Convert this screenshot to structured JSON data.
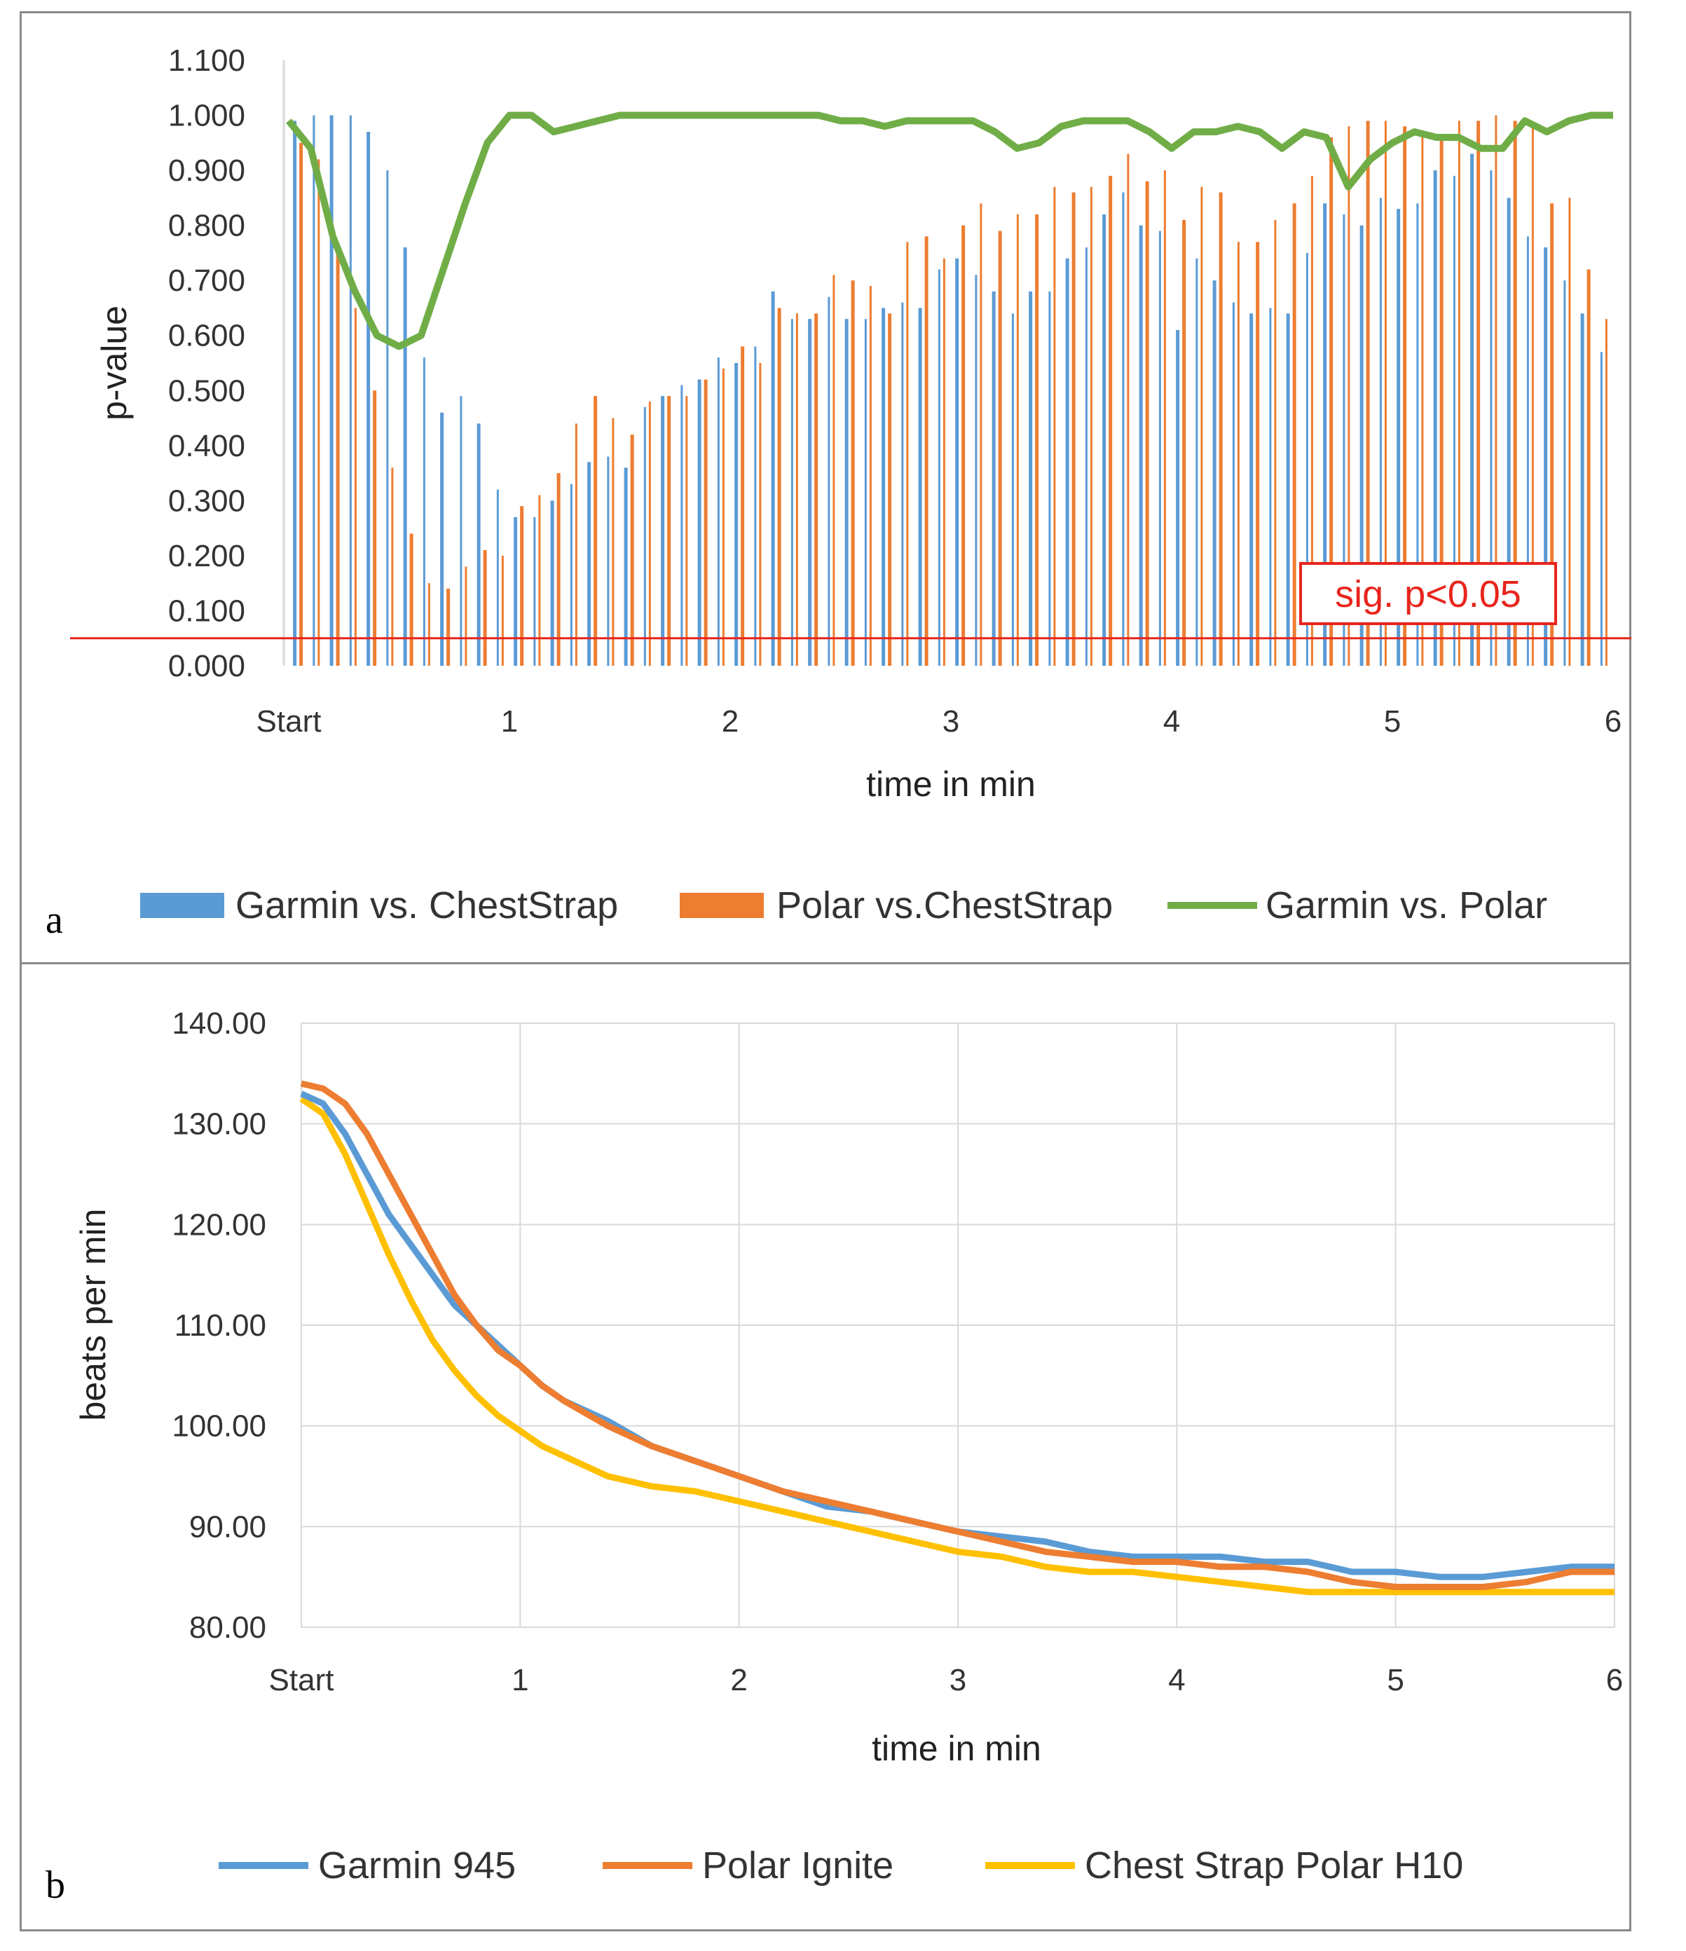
{
  "colors": {
    "garmin": "#5b9bd5",
    "polar": "#ed7d31",
    "green": "#70ad47",
    "chest": "#ffc000",
    "sig": "#e8241c",
    "grid": "#d9d9d9"
  },
  "panel_a": {
    "letter": "a",
    "sig_label": "sig. p<0.05"
  },
  "panel_b": {
    "letter": "b"
  },
  "chart_data": [
    {
      "type": "bar",
      "title": "",
      "xlabel": "time in min",
      "ylabel": "p-value",
      "ylim": [
        0,
        1.1
      ],
      "yticks": [
        "0.000",
        "0.100",
        "0.200",
        "0.300",
        "0.400",
        "0.500",
        "0.600",
        "0.700",
        "0.800",
        "0.900",
        "1.000",
        "1.100"
      ],
      "xlim": [
        0,
        6
      ],
      "xticks": [
        {
          "x": 0,
          "label": "Start"
        },
        {
          "x": 1,
          "label": "1"
        },
        {
          "x": 2,
          "label": "2"
        },
        {
          "x": 3,
          "label": "3"
        },
        {
          "x": 4,
          "label": "4"
        },
        {
          "x": 5,
          "label": "5"
        },
        {
          "x": 6,
          "label": "6"
        }
      ],
      "threshold": 0.05,
      "legend": [
        "Garmin vs. ChestStrap",
        "Polar vs.ChestStrap",
        "Garmin vs. Polar"
      ],
      "series": [
        {
          "name": "Garmin vs. ChestStrap",
          "kind": "bar",
          "values": [
            0.99,
            1.0,
            1.0,
            1.0,
            0.97,
            0.9,
            0.76,
            0.56,
            0.46,
            0.49,
            0.44,
            0.32,
            0.27,
            0.27,
            0.3,
            0.33,
            0.37,
            0.38,
            0.36,
            0.47,
            0.49,
            0.51,
            0.52,
            0.56,
            0.55,
            0.58,
            0.68,
            0.63,
            0.63,
            0.67,
            0.63,
            0.63,
            0.65,
            0.66,
            0.65,
            0.72,
            0.74,
            0.71,
            0.68,
            0.64,
            0.68,
            0.68,
            0.74,
            0.76,
            0.82,
            0.86,
            0.8,
            0.79,
            0.61,
            0.74,
            0.7,
            0.66,
            0.64,
            0.65,
            0.64,
            0.75,
            0.84,
            0.82,
            0.8,
            0.85,
            0.83,
            0.84,
            0.9,
            0.89,
            0.93,
            0.9,
            0.85,
            0.78,
            0.76,
            0.7,
            0.64,
            0.57
          ]
        },
        {
          "name": "Polar vs.ChestStrap",
          "kind": "bar",
          "values": [
            0.95,
            0.92,
            0.75,
            0.65,
            0.5,
            0.36,
            0.24,
            0.15,
            0.14,
            0.18,
            0.21,
            0.2,
            0.29,
            0.31,
            0.35,
            0.44,
            0.49,
            0.45,
            0.42,
            0.48,
            0.49,
            0.49,
            0.52,
            0.54,
            0.58,
            0.55,
            0.65,
            0.64,
            0.64,
            0.71,
            0.7,
            0.69,
            0.64,
            0.77,
            0.78,
            0.74,
            0.8,
            0.84,
            0.79,
            0.82,
            0.82,
            0.87,
            0.86,
            0.87,
            0.89,
            0.93,
            0.88,
            0.9,
            0.81,
            0.87,
            0.86,
            0.77,
            0.77,
            0.81,
            0.84,
            0.89,
            0.96,
            0.98,
            0.99,
            0.99,
            0.98,
            0.97,
            0.96,
            0.99,
            0.99,
            1.0,
            0.99,
            0.98,
            0.84,
            0.85,
            0.72,
            0.63
          ]
        },
        {
          "name": "Garmin vs. Polar",
          "kind": "line",
          "x": [
            0,
            0.1,
            0.2,
            0.3,
            0.4,
            0.5,
            0.6,
            0.7,
            0.8,
            0.9,
            1.0,
            1.1,
            1.2,
            1.3,
            1.4,
            1.5,
            1.6,
            1.7,
            1.8,
            1.9,
            2.0,
            2.1,
            2.2,
            2.3,
            2.4,
            2.5,
            2.6,
            2.7,
            2.8,
            2.9,
            3.0,
            3.1,
            3.2,
            3.3,
            3.4,
            3.5,
            3.6,
            3.7,
            3.8,
            3.9,
            4.0,
            4.1,
            4.2,
            4.3,
            4.4,
            4.5,
            4.6,
            4.7,
            4.8,
            4.9,
            5.0,
            5.1,
            5.2,
            5.3,
            5.4,
            5.5,
            5.6,
            5.7,
            5.8,
            5.9,
            6.0
          ],
          "values": [
            0.99,
            0.94,
            0.78,
            0.68,
            0.6,
            0.58,
            0.6,
            0.72,
            0.84,
            0.95,
            1.0,
            1.0,
            0.97,
            0.98,
            0.99,
            1.0,
            1.0,
            1.0,
            1.0,
            1.0,
            1.0,
            1.0,
            1.0,
            1.0,
            1.0,
            0.99,
            0.99,
            0.98,
            0.99,
            0.99,
            0.99,
            0.99,
            0.97,
            0.94,
            0.95,
            0.98,
            0.99,
            0.99,
            0.99,
            0.97,
            0.94,
            0.97,
            0.97,
            0.98,
            0.97,
            0.94,
            0.97,
            0.96,
            0.87,
            0.92,
            0.95,
            0.97,
            0.96,
            0.96,
            0.94,
            0.94,
            0.99,
            0.97,
            0.99,
            1.0,
            1.0
          ]
        }
      ]
    },
    {
      "type": "line",
      "title": "",
      "xlabel": "time in min",
      "ylabel": "beats per min",
      "ylim": [
        80,
        140
      ],
      "yticks": [
        "80.00",
        "90.00",
        "100.00",
        "110.00",
        "120.00",
        "130.00",
        "140.00"
      ],
      "xlim": [
        0,
        6
      ],
      "xticks": [
        {
          "x": 0,
          "label": "Start"
        },
        {
          "x": 1,
          "label": "1"
        },
        {
          "x": 2,
          "label": "2"
        },
        {
          "x": 3,
          "label": "3"
        },
        {
          "x": 4,
          "label": "4"
        },
        {
          "x": 5,
          "label": "5"
        },
        {
          "x": 6,
          "label": "6"
        }
      ],
      "legend": [
        "Garmin 945",
        "Polar Ignite",
        "Chest Strap Polar H10"
      ],
      "series": [
        {
          "name": "Garmin 945",
          "x": [
            0,
            0.1,
            0.2,
            0.3,
            0.4,
            0.5,
            0.6,
            0.7,
            0.8,
            0.9,
            1.0,
            1.1,
            1.2,
            1.4,
            1.6,
            1.8,
            2.0,
            2.2,
            2.4,
            2.6,
            2.8,
            3.0,
            3.2,
            3.4,
            3.6,
            3.8,
            4.0,
            4.2,
            4.4,
            4.6,
            4.8,
            5.0,
            5.2,
            5.4,
            5.6,
            5.8,
            6.0
          ],
          "values": [
            133.0,
            132.0,
            129.0,
            125.0,
            121.0,
            118.0,
            115.0,
            112.0,
            110.0,
            108.0,
            106.0,
            104.0,
            102.5,
            100.5,
            98.0,
            96.5,
            95.0,
            93.5,
            92.0,
            91.5,
            90.5,
            89.5,
            89.0,
            88.5,
            87.5,
            87.0,
            87.0,
            87.0,
            86.5,
            86.5,
            85.5,
            85.5,
            85.0,
            85.0,
            85.5,
            86.0,
            86.0
          ]
        },
        {
          "name": "Polar Ignite",
          "x": [
            0,
            0.1,
            0.2,
            0.3,
            0.4,
            0.5,
            0.6,
            0.7,
            0.8,
            0.9,
            1.0,
            1.1,
            1.2,
            1.4,
            1.6,
            1.8,
            2.0,
            2.2,
            2.4,
            2.6,
            2.8,
            3.0,
            3.2,
            3.4,
            3.6,
            3.8,
            4.0,
            4.2,
            4.4,
            4.6,
            4.8,
            5.0,
            5.2,
            5.4,
            5.6,
            5.8,
            6.0
          ],
          "values": [
            134.0,
            133.5,
            132.0,
            129.0,
            125.0,
            121.0,
            117.0,
            113.0,
            110.0,
            107.5,
            106.0,
            104.0,
            102.5,
            100.0,
            98.0,
            96.5,
            95.0,
            93.5,
            92.5,
            91.5,
            90.5,
            89.5,
            88.5,
            87.5,
            87.0,
            86.5,
            86.5,
            86.0,
            86.0,
            85.5,
            84.5,
            84.0,
            84.0,
            84.0,
            84.5,
            85.5,
            85.5
          ]
        },
        {
          "name": "Chest Strap Polar H10",
          "x": [
            0,
            0.1,
            0.2,
            0.3,
            0.4,
            0.5,
            0.6,
            0.7,
            0.8,
            0.9,
            1.0,
            1.1,
            1.2,
            1.4,
            1.6,
            1.8,
            2.0,
            2.2,
            2.4,
            2.6,
            2.8,
            3.0,
            3.2,
            3.4,
            3.6,
            3.8,
            4.0,
            4.2,
            4.4,
            4.6,
            4.8,
            5.0,
            5.2,
            5.4,
            5.6,
            5.8,
            6.0
          ],
          "values": [
            132.5,
            131.0,
            127.0,
            122.0,
            117.0,
            112.5,
            108.5,
            105.5,
            103.0,
            101.0,
            99.5,
            98.0,
            97.0,
            95.0,
            94.0,
            93.5,
            92.5,
            91.5,
            90.5,
            89.5,
            88.5,
            87.5,
            87.0,
            86.0,
            85.5,
            85.5,
            85.0,
            84.5,
            84.0,
            83.5,
            83.5,
            83.5,
            83.5,
            83.5,
            83.5,
            83.5,
            83.5
          ]
        }
      ]
    }
  ]
}
